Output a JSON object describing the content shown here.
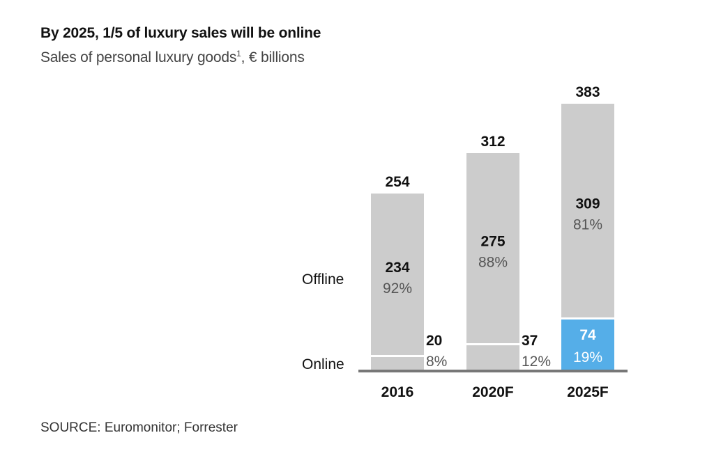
{
  "chart_data": {
    "type": "bar",
    "title": "By 2025, 1/5 of luxury sales will be online",
    "subtitle": "Sales of personal luxury goods",
    "subtitle_footnote": "1",
    "subtitle_units": ", € billions",
    "categories": [
      "2016",
      "2020F",
      "2025F"
    ],
    "row_labels": [
      "Offline",
      "Online"
    ],
    "totals": [
      254,
      312,
      383
    ],
    "series": [
      {
        "name": "Offline",
        "values": [
          234,
          275,
          309
        ],
        "percents": [
          "92%",
          "88%",
          "81%"
        ]
      },
      {
        "name": "Online",
        "values": [
          20,
          37,
          74
        ],
        "percents": [
          "8%",
          "12%",
          "19%"
        ]
      }
    ],
    "colors": {
      "offline": "#cccccc",
      "online_2025": "#55aee8",
      "online_default": "#cccccc",
      "baseline": "#777777"
    },
    "source": "SOURCE: Euromonitor; Forrester"
  }
}
